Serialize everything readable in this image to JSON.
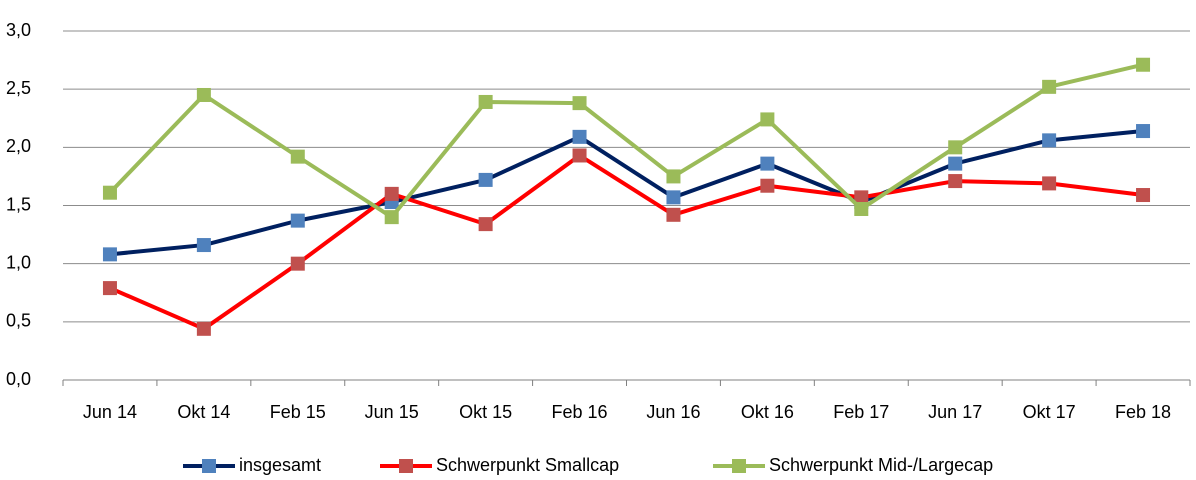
{
  "chart_data": {
    "type": "line",
    "categories": [
      "Jun 14",
      "Okt 14",
      "Feb 15",
      "Jun 15",
      "Okt 15",
      "Feb 16",
      "Jun 16",
      "Okt 16",
      "Feb 17",
      "Jun 17",
      "Okt 17",
      "Feb 18"
    ],
    "series": [
      {
        "name": "insgesamt",
        "color": "#002060",
        "marker_color": "#4f81bd",
        "values": [
          1.08,
          1.16,
          1.37,
          1.53,
          1.72,
          2.09,
          1.57,
          1.86,
          1.53,
          1.86,
          2.06,
          2.14
        ]
      },
      {
        "name": "Schwerpunkt Smallcap",
        "color": "#ff0000",
        "marker_color": "#c0504d",
        "values": [
          0.79,
          0.44,
          1.0,
          1.6,
          1.34,
          1.93,
          1.42,
          1.67,
          1.57,
          1.71,
          1.69,
          1.59
        ]
      },
      {
        "name": "Schwerpunkt Mid-/Largecap",
        "color": "#9bbb59",
        "marker_color": "#9bbb59",
        "values": [
          1.61,
          2.45,
          1.92,
          1.4,
          2.39,
          2.38,
          1.75,
          2.24,
          1.47,
          2.0,
          2.52,
          2.71
        ]
      }
    ],
    "ylim": [
      0,
      3
    ],
    "yticks": [
      {
        "value": 0,
        "label": "0,0"
      },
      {
        "value": 0.5,
        "label": "0,5"
      },
      {
        "value": 1,
        "label": "1,0"
      },
      {
        "value": 1.5,
        "label": "1,5"
      },
      {
        "value": 2,
        "label": "2,0"
      },
      {
        "value": 2.5,
        "label": "2,5"
      },
      {
        "value": 3,
        "label": "3,0"
      }
    ],
    "grid": true,
    "legend": "bottom"
  }
}
